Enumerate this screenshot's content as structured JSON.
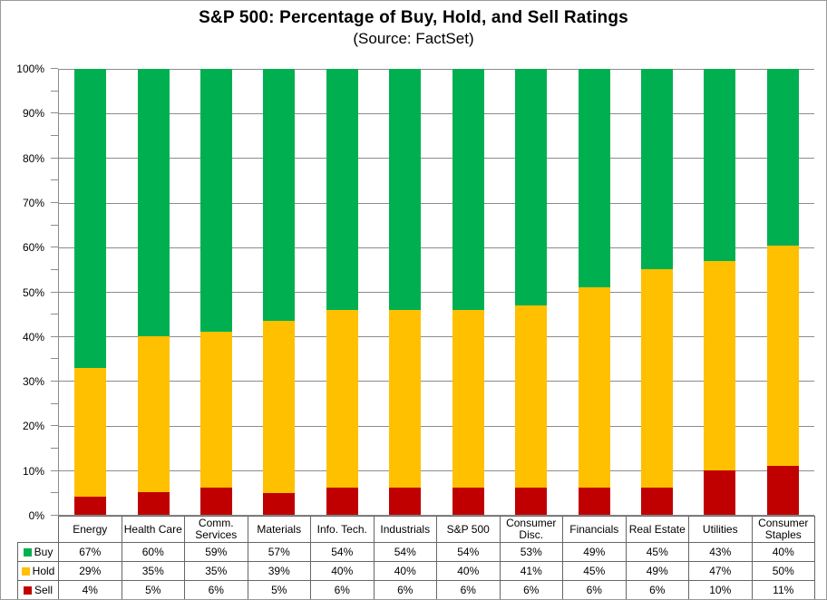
{
  "chart_data": {
    "type": "bar",
    "stacked": true,
    "orientation": "vertical",
    "title": "S&P 500: Percentage of Buy, Hold, and Sell Ratings",
    "subtitle": "(Source: FactSet)",
    "categories": [
      "Energy",
      "Health Care",
      "Comm. Services",
      "Materials",
      "Info. Tech.",
      "Industrials",
      "S&P 500",
      "Consumer Disc.",
      "Financials",
      "Real Estate",
      "Utilities",
      "Consumer Staples"
    ],
    "series": [
      {
        "name": "Buy",
        "color": "#00B050",
        "values": [
          67,
          60,
          59,
          57,
          54,
          54,
          54,
          53,
          49,
          45,
          43,
          40
        ]
      },
      {
        "name": "Hold",
        "color": "#FFC000",
        "values": [
          29,
          35,
          35,
          39,
          40,
          40,
          40,
          41,
          45,
          49,
          47,
          50
        ]
      },
      {
        "name": "Sell",
        "color": "#C00000",
        "values": [
          4,
          5,
          6,
          5,
          6,
          6,
          6,
          6,
          6,
          6,
          10,
          11
        ]
      }
    ],
    "value_suffix": "%",
    "ylim": [
      0,
      100
    ],
    "y_ticks": [
      "0%",
      "10%",
      "20%",
      "30%",
      "40%",
      "50%",
      "60%",
      "70%",
      "80%",
      "90%",
      "100%"
    ],
    "y_minor_tick_step": 5,
    "grid": "horizontal-major",
    "legend_position": "table-left",
    "colors": {
      "gridline": "#8C8C8C",
      "axis": "#8C8C8C",
      "table_border": "#666666",
      "outer_border": "#999999",
      "text": "#000000",
      "background": "#FFFFFF"
    }
  }
}
